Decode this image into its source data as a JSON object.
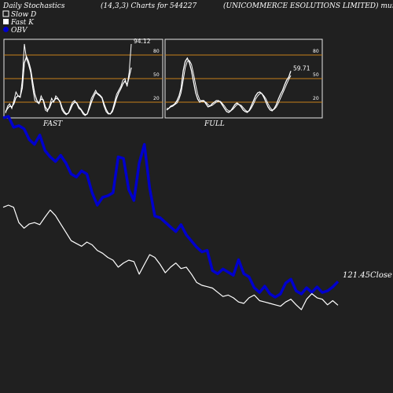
{
  "header": {
    "title": "Daily Stochastics",
    "params": "(14,3,3) Charts for 544227",
    "company": "(UNICOMMERCE ESOLUTIONS LIMITED) munafasutra.tbrjo"
  },
  "legend": {
    "slow_d": "Slow  D",
    "fast_k": "Fast K",
    "obv": "OBV"
  },
  "colors": {
    "background": "#202020",
    "panel_border": "#e6e6e6",
    "level_line": "#c8801a",
    "price_line": "#ffffff",
    "obv_line": "#0000cc"
  },
  "chart_data": [
    {
      "type": "line",
      "panel": "FAST",
      "xlabel": "FAST",
      "ylim": [
        0,
        100
      ],
      "yticks": [
        20,
        50,
        80
      ],
      "levels": [
        20,
        50,
        80
      ],
      "last_value_label": "94.12",
      "series": [
        {
          "name": "Fast K",
          "values": [
            6,
            15,
            18,
            12,
            22,
            33,
            28,
            26,
            48,
            94,
            75,
            68,
            58,
            38,
            22,
            20,
            18,
            28,
            22,
            10,
            8,
            15,
            25,
            20,
            28,
            25,
            20,
            10,
            6,
            4,
            6,
            14,
            20,
            22,
            18,
            12,
            10,
            5,
            3,
            5,
            15,
            25,
            30,
            35,
            30,
            28,
            25,
            15,
            8,
            5,
            5,
            10,
            20,
            30,
            35,
            40,
            48,
            50,
            40,
            58,
            94
          ]
        },
        {
          "name": "Slow D",
          "values": [
            8,
            12,
            15,
            14,
            18,
            26,
            28,
            27,
            38,
            70,
            78,
            72,
            62,
            45,
            30,
            22,
            19,
            24,
            23,
            14,
            10,
            13,
            20,
            21,
            25,
            24,
            21,
            13,
            8,
            5,
            6,
            11,
            17,
            20,
            19,
            14,
            11,
            7,
            4,
            5,
            12,
            20,
            27,
            32,
            31,
            29,
            26,
            18,
            11,
            6,
            5,
            8,
            16,
            25,
            32,
            37,
            43,
            47,
            42,
            52,
            64
          ]
        }
      ]
    },
    {
      "type": "line",
      "panel": "FULL",
      "xlabel": "FULL",
      "ylim": [
        0,
        100
      ],
      "yticks": [
        20,
        50,
        80
      ],
      "levels": [
        20,
        50,
        80
      ],
      "last_value_label": "59.71",
      "series": [
        {
          "name": "Slow K",
          "values": [
            10,
            12,
            15,
            16,
            18,
            22,
            28,
            38,
            60,
            72,
            76,
            70,
            60,
            46,
            32,
            24,
            20,
            22,
            22,
            18,
            14,
            15,
            18,
            20,
            22,
            22,
            20,
            16,
            12,
            8,
            7,
            9,
            13,
            17,
            19,
            17,
            14,
            10,
            8,
            7,
            10,
            16,
            22,
            28,
            32,
            33,
            31,
            26,
            20,
            14,
            10,
            9,
            12,
            17,
            24,
            30,
            35,
            42,
            48,
            52,
            59.71
          ]
        },
        {
          "name": "Full D",
          "values": [
            12,
            12,
            14,
            15,
            17,
            19,
            24,
            32,
            48,
            64,
            72,
            73,
            68,
            56,
            42,
            30,
            23,
            21,
            21,
            20,
            17,
            15,
            16,
            18,
            20,
            21,
            21,
            18,
            15,
            11,
            9,
            9,
            11,
            14,
            17,
            17,
            16,
            13,
            10,
            8,
            9,
            13,
            18,
            24,
            28,
            31,
            31,
            28,
            24,
            18,
            13,
            10,
            11,
            14,
            19,
            25,
            31,
            37,
            43,
            49,
            54
          ]
        }
      ]
    },
    {
      "type": "line",
      "panel": "price-obv",
      "close_label": "121.45Close",
      "series": [
        {
          "name": "Close",
          "values": [
            262,
            265,
            262,
            240,
            232,
            238,
            240,
            237,
            248,
            258,
            250,
            238,
            226,
            214,
            210,
            206,
            212,
            208,
            200,
            196,
            190,
            186,
            176,
            182,
            186,
            184,
            166,
            180,
            194,
            190,
            180,
            168,
            176,
            182,
            174,
            176,
            166,
            154,
            150,
            148,
            146,
            140,
            134,
            136,
            132,
            126,
            124,
            132,
            136,
            128,
            126,
            124,
            122,
            120,
            126,
            130,
            122,
            115,
            130,
            138,
            132,
            130,
            122,
            128,
            121.45
          ]
        },
        {
          "name": "OBV",
          "values": [
            352,
            354,
            340,
            342,
            338,
            324,
            318,
            330,
            310,
            302,
            296,
            304,
            294,
            280,
            276,
            284,
            280,
            256,
            240,
            250,
            252,
            256,
            302,
            300,
            260,
            246,
            294,
            318,
            262,
            226,
            224,
            218,
            212,
            206,
            215,
            202,
            194,
            186,
            180,
            182,
            156,
            152,
            158,
            154,
            150,
            170,
            152,
            148,
            134,
            128,
            136,
            126,
            122,
            126,
            140,
            145,
            130,
            126,
            134,
            128,
            135,
            128,
            130,
            135,
            142
          ]
        }
      ]
    }
  ]
}
